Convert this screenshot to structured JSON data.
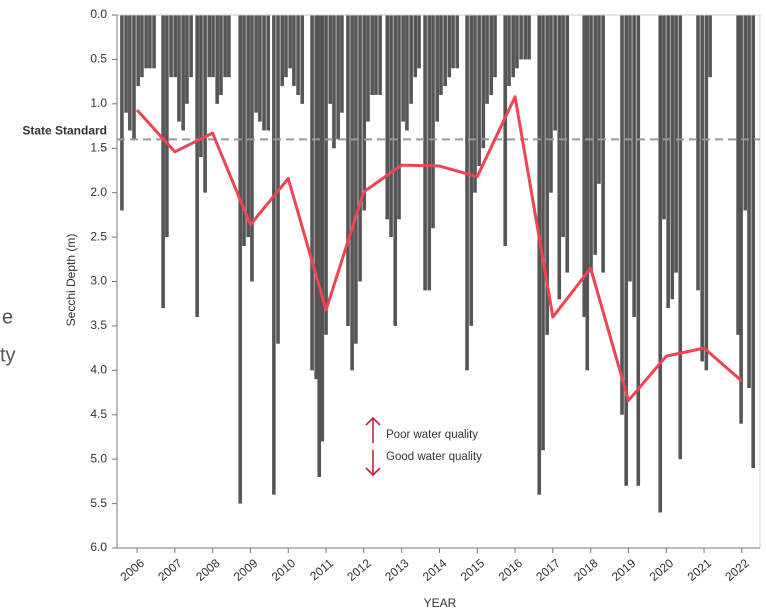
{
  "chart_data": {
    "type": "combo",
    "y_label": "Secchi Depth (m)",
    "x_label": "YEAR",
    "y_inverted": true,
    "xlim": [
      2005.47,
      2022.48
    ],
    "xticks": [
      2006,
      2007,
      2008,
      2009,
      2010,
      2011,
      2012,
      2013,
      2014,
      2015,
      2016,
      2017,
      2018,
      2019,
      2020,
      2021,
      2022
    ],
    "ylim": [
      0,
      6
    ],
    "yticks": [
      {
        "value": 0,
        "label": "0.0"
      },
      0.5,
      {
        "value": 1,
        "label": "1.0"
      },
      1.5,
      {
        "value": 2,
        "label": "2.0"
      },
      2.5,
      {
        "value": 3,
        "label": "3.0"
      },
      3.5,
      {
        "value": 4,
        "label": "4.0"
      },
      4.5,
      {
        "value": 5,
        "label": "5.0"
      },
      5.5,
      {
        "value": 6,
        "label": "6.0"
      }
    ],
    "standard": {
      "label": "State Standard",
      "value": 1.4,
      "color": "#999999"
    },
    "samples": {
      "color": "#555555",
      "x": [
        2005.6,
        2005.71,
        2005.81,
        2005.92,
        2006.03,
        2006.13,
        2006.24,
        2006.34,
        2006.45,
        2006.69,
        2006.79,
        2006.9,
        2007.01,
        2007.11,
        2007.22,
        2007.32,
        2007.43,
        2007.59,
        2007.69,
        2007.8,
        2007.91,
        2008.01,
        2008.12,
        2008.22,
        2008.33,
        2008.43,
        2008.73,
        2008.83,
        2008.94,
        2009.04,
        2009.15,
        2009.25,
        2009.36,
        2009.47,
        2009.62,
        2009.73,
        2009.84,
        2009.94,
        2010.05,
        2010.15,
        2010.26,
        2010.37,
        2010.63,
        2010.74,
        2010.82,
        2010.9,
        2011.0,
        2011.11,
        2011.21,
        2011.32,
        2011.42,
        2011.58,
        2011.69,
        2011.79,
        2011.9,
        2012.01,
        2012.11,
        2012.22,
        2012.32,
        2012.43,
        2012.62,
        2012.72,
        2012.83,
        2012.93,
        2013.04,
        2013.14,
        2013.25,
        2013.36,
        2013.46,
        2013.62,
        2013.73,
        2013.83,
        2013.94,
        2014.04,
        2014.15,
        2014.26,
        2014.36,
        2014.47,
        2014.73,
        2014.84,
        2014.94,
        2015.05,
        2015.16,
        2015.26,
        2015.37,
        2015.47,
        2015.74,
        2015.84,
        2015.95,
        2016.05,
        2016.16,
        2016.27,
        2016.37,
        2016.64,
        2016.74,
        2016.85,
        2016.95,
        2017.06,
        2017.17,
        2017.27,
        2017.38,
        2017.83,
        2017.91,
        2018.01,
        2018.12,
        2018.22,
        2018.33,
        2018.83,
        2018.94,
        2019.04,
        2019.15,
        2019.26,
        2019.84,
        2019.94,
        2020.05,
        2020.16,
        2020.26,
        2020.37,
        2020.84,
        2020.95,
        2021.06,
        2021.16,
        2021.9,
        2021.98,
        2022.09,
        2022.19,
        2022.3
      ],
      "values": [
        2.2,
        1.1,
        1.3,
        1.4,
        0.8,
        0.7,
        0.6,
        0.6,
        0.6,
        3.3,
        2.5,
        0.7,
        0.7,
        1.2,
        1.3,
        1.0,
        0.7,
        3.4,
        1.6,
        2.0,
        0.7,
        0.7,
        1.0,
        0.9,
        0.7,
        0.7,
        5.5,
        2.6,
        2.5,
        3.0,
        1.1,
        1.2,
        1.3,
        1.3,
        5.4,
        3.7,
        0.8,
        0.7,
        0.6,
        0.8,
        0.9,
        1.0,
        4.0,
        4.1,
        5.2,
        4.8,
        3.6,
        1.0,
        1.5,
        1.4,
        1.1,
        3.5,
        4.0,
        3.7,
        3.0,
        2.2,
        1.2,
        0.9,
        0.9,
        0.9,
        2.3,
        2.5,
        3.5,
        2.3,
        1.2,
        1.3,
        1.0,
        0.7,
        0.6,
        3.1,
        3.1,
        2.4,
        1.2,
        0.9,
        0.8,
        0.7,
        0.6,
        0.6,
        4.0,
        3.5,
        2.0,
        1.7,
        1.5,
        1.0,
        0.9,
        0.7,
        2.6,
        0.8,
        0.7,
        0.6,
        0.5,
        0.5,
        0.5,
        5.4,
        4.9,
        3.6,
        2.0,
        1.3,
        3.2,
        2.5,
        2.9,
        3.4,
        4.0,
        2.9,
        2.7,
        1.9,
        2.9,
        4.5,
        5.3,
        3.0,
        3.4,
        5.3,
        5.6,
        2.3,
        3.3,
        3.2,
        2.9,
        5.0,
        3.1,
        3.9,
        4.0,
        0.7,
        3.6,
        4.6,
        2.2,
        4.2,
        5.1
      ]
    },
    "mean_line": {
      "color": "#ee4455",
      "x": [
        2006,
        2007,
        2008,
        2009,
        2010,
        2011,
        2012,
        2013,
        2014,
        2015,
        2016,
        2017,
        2018,
        2019,
        2020,
        2021,
        2022
      ],
      "values": [
        1.07,
        1.54,
        1.33,
        2.36,
        1.84,
        3.32,
        1.99,
        1.69,
        1.7,
        1.82,
        0.92,
        3.4,
        2.85,
        4.34,
        3.84,
        3.75,
        4.12
      ]
    },
    "annotations": [
      "Poor water quality",
      "Good water quality"
    ],
    "cropped_text": [
      "e",
      "ty"
    ]
  }
}
